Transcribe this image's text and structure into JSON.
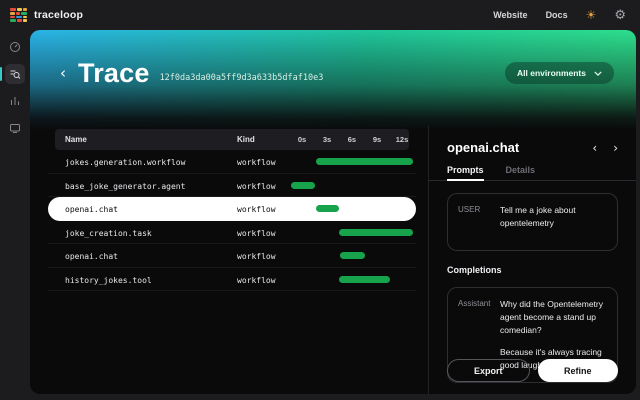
{
  "topbar": {
    "brand": "traceloop",
    "links": [
      {
        "label": "Website"
      },
      {
        "label": "Docs"
      }
    ],
    "theme_icon": "☀",
    "settings_icon": "⚙"
  },
  "sidebar": {
    "items": [
      {
        "name": "dashboard",
        "active": false
      },
      {
        "name": "trace-search",
        "active": true
      },
      {
        "name": "analytics",
        "active": false
      },
      {
        "name": "monitors",
        "active": false
      }
    ]
  },
  "header": {
    "back": "‹",
    "title": "Trace",
    "trace_id": "12f0da3da00a5ff9d3a633b5dfaf10e3",
    "env_selector": "All environments"
  },
  "table": {
    "columns": {
      "name": "Name",
      "kind": "Kind"
    },
    "ticks": [
      "0s",
      "3s",
      "6s",
      "9s",
      "12s"
    ],
    "tick_positions_pct": [
      13.1,
      32.3,
      51.5,
      70.8,
      90.0
    ],
    "rows": [
      {
        "name": "jokes.generation.workflow",
        "kind": "workflow",
        "selected": false,
        "bar": {
          "left": 23.8,
          "width": 74.6
        }
      },
      {
        "name": "base_joke_generator.agent",
        "kind": "workflow",
        "selected": false,
        "bar": {
          "left": 4.6,
          "width": 18.5
        }
      },
      {
        "name": "openai.chat",
        "kind": "workflow",
        "selected": true,
        "bar": {
          "left": 23.8,
          "width": 17.7
        }
      },
      {
        "name": "joke_creation.task",
        "kind": "workflow",
        "selected": false,
        "bar": {
          "left": 41.5,
          "width": 56.9
        }
      },
      {
        "name": "openai.chat",
        "kind": "workflow",
        "selected": false,
        "bar": {
          "left": 42.3,
          "width": 19.2
        }
      },
      {
        "name": "history_jokes.tool",
        "kind": "workflow",
        "selected": false,
        "bar": {
          "left": 41.5,
          "width": 39.2
        }
      }
    ]
  },
  "detail": {
    "title": "openai.chat",
    "prev_arrow": "‹",
    "next_arrow": "›",
    "tabs": [
      {
        "label": "Prompts"
      },
      {
        "label": "Details"
      }
    ],
    "prompt": {
      "role": "USER",
      "text": "Tell me a joke about opentelemetry"
    },
    "completions_heading": "Completions",
    "completion": {
      "role": "Assistant",
      "lines": [
        "Why did the Opentelemetry agent become a stand up comedian?",
        "Because it's always tracing good laughs!"
      ]
    },
    "actions": {
      "export": "Export",
      "refine": "Refine"
    }
  },
  "colors": {
    "bar_green": "#17a34c",
    "gradient_start": "#2ab3e8",
    "gradient_end": "#2ee08c",
    "sun": "#e2a23c"
  }
}
